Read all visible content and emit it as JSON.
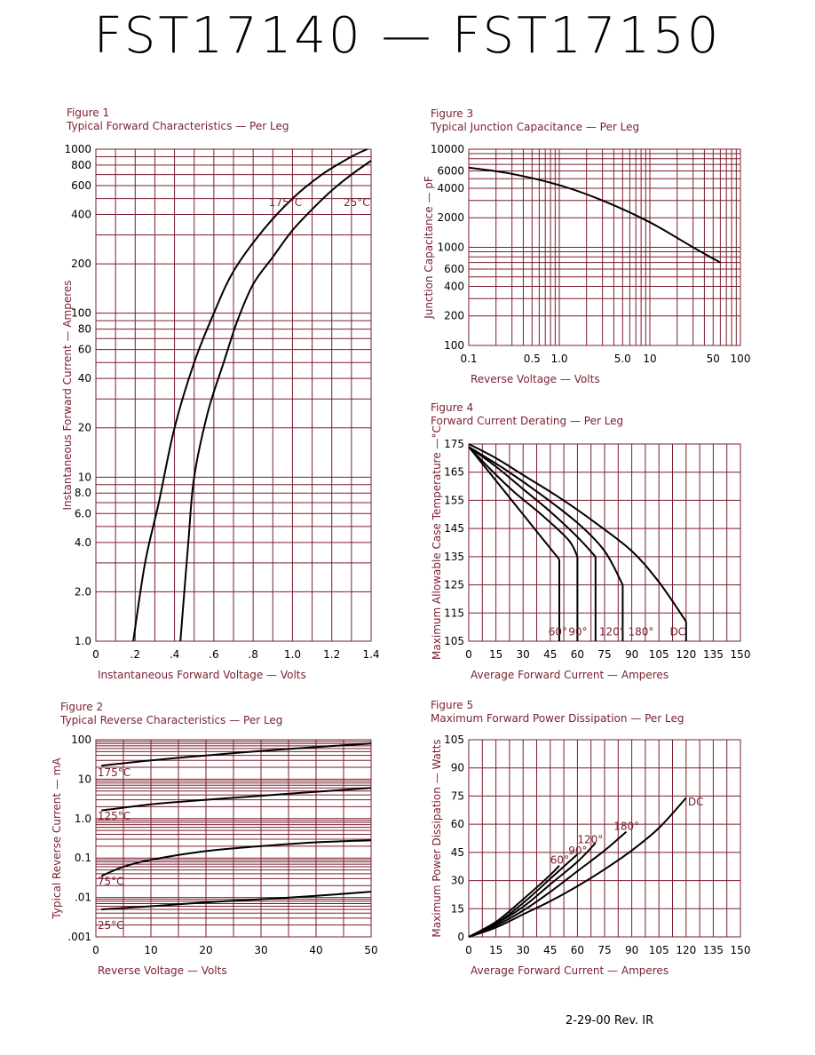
{
  "page": {
    "title": "FST17140 — FST17150",
    "footer": "2-29-00    Rev. IR"
  },
  "chart_data": [
    {
      "id": "fig1",
      "type": "line",
      "figure_label": "Figure 1",
      "title": "Typical Forward Characteristics — Per Leg",
      "xlabel": "Instantaneous Forward Voltage — Volts",
      "ylabel": "Instantaneous Forward Current — Amperes",
      "xlim": [
        0,
        1.4
      ],
      "ylim": [
        1,
        1000
      ],
      "yscale": "log",
      "x_ticks": [
        0,
        0.2,
        0.4,
        0.6,
        0.8,
        1.0,
        1.2,
        1.4
      ],
      "x_tick_labels": [
        "0",
        ".2",
        ".4",
        ".6",
        ".8",
        "1.0",
        "1.2",
        "1.4"
      ],
      "y_ticks": [
        1,
        2,
        4,
        6,
        8,
        10,
        20,
        40,
        60,
        80,
        100,
        200,
        400,
        600,
        800,
        1000
      ],
      "y_tick_labels": [
        "1.0",
        "2.0",
        "4.0",
        "6.0",
        "8.0",
        "10",
        "20",
        "40",
        "60",
        "80",
        "100",
        "200",
        "400",
        "600",
        "800",
        "1000"
      ],
      "series": [
        {
          "name": "175°C",
          "x": [
            0.19,
            0.25,
            0.32,
            0.4,
            0.5,
            0.6,
            0.7,
            0.85,
            1.0,
            1.15,
            1.3,
            1.38
          ],
          "y": [
            1,
            3,
            7,
            20,
            50,
            100,
            180,
            320,
            500,
            700,
            900,
            1000
          ]
        },
        {
          "name": "25°C",
          "x": [
            0.43,
            0.47,
            0.5,
            0.57,
            0.65,
            0.72,
            0.8,
            0.9,
            1.0,
            1.1,
            1.2,
            1.3,
            1.4
          ],
          "y": [
            1,
            4,
            10,
            25,
            50,
            90,
            150,
            220,
            320,
            430,
            560,
            700,
            850
          ]
        }
      ],
      "annotations": [
        {
          "text": "175°C",
          "x": 0.88,
          "y": 450
        },
        {
          "text": "25°C",
          "x": 1.26,
          "y": 450
        }
      ]
    },
    {
      "id": "fig2",
      "type": "line",
      "figure_label": "Figure 2",
      "title": "Typical Reverse Characteristics — Per Leg",
      "xlabel": "Reverse Voltage — Volts",
      "ylabel": "Typical Reverse Current — mA",
      "xlim": [
        0,
        50
      ],
      "ylim": [
        0.001,
        100
      ],
      "yscale": "log",
      "x_ticks": [
        0,
        10,
        20,
        30,
        40,
        50
      ],
      "x_tick_labels": [
        "0",
        "10",
        "20",
        "30",
        "40",
        "50"
      ],
      "y_ticks": [
        0.001,
        0.01,
        0.1,
        1,
        10,
        100
      ],
      "y_tick_labels": [
        ".001",
        ".01",
        "0.1",
        "1.0",
        "10",
        "100"
      ],
      "series": [
        {
          "name": "175°C",
          "x": [
            1,
            10,
            20,
            30,
            40,
            50
          ],
          "y": [
            22,
            30,
            40,
            52,
            65,
            80
          ]
        },
        {
          "name": "125°C",
          "x": [
            1,
            10,
            20,
            30,
            40,
            50
          ],
          "y": [
            1.6,
            2.3,
            3.0,
            3.8,
            4.8,
            6.0
          ]
        },
        {
          "name": "75°C",
          "x": [
            1,
            5,
            10,
            20,
            30,
            40,
            50
          ],
          "y": [
            0.035,
            0.06,
            0.09,
            0.15,
            0.2,
            0.25,
            0.28
          ]
        },
        {
          "name": "25°C",
          "x": [
            1,
            10,
            20,
            30,
            40,
            50
          ],
          "y": [
            0.005,
            0.006,
            0.0075,
            0.009,
            0.011,
            0.014
          ]
        }
      ],
      "annotations": [
        {
          "text": "175°C",
          "x": 0.3,
          "y": 12
        },
        {
          "text": "125°C",
          "x": 0.3,
          "y": 0.95
        },
        {
          "text": "75°C",
          "x": 0.3,
          "y": 0.021
        },
        {
          "text": "25°C",
          "x": 0.3,
          "y": 0.0016
        }
      ]
    },
    {
      "id": "fig3",
      "type": "line",
      "figure_label": "Figure 3",
      "title": "Typical Junction Capacitance — Per Leg",
      "xlabel": "Reverse Voltage — Volts",
      "ylabel": "Junction Capacitance — pF",
      "xscale": "log",
      "yscale": "log",
      "xlim": [
        0.1,
        100
      ],
      "ylim": [
        100,
        10000
      ],
      "x_ticks": [
        0.1,
        0.5,
        1.0,
        5.0,
        10,
        50,
        100
      ],
      "x_tick_labels": [
        "0.1",
        "0.5",
        "1.0",
        "5.0",
        "10",
        "50",
        "100"
      ],
      "y_ticks": [
        100,
        200,
        400,
        600,
        1000,
        2000,
        4000,
        6000,
        10000
      ],
      "y_tick_labels": [
        "100",
        "200",
        "400",
        "600",
        "1000",
        "2000",
        "4000",
        "6000",
        "10000"
      ],
      "series": [
        {
          "name": "",
          "x": [
            0.1,
            0.3,
            1,
            3,
            10,
            30,
            60
          ],
          "y": [
            6500,
            5600,
            4300,
            3000,
            1800,
            1000,
            700
          ]
        }
      ]
    },
    {
      "id": "fig4",
      "type": "line",
      "figure_label": "Figure 4",
      "title": "Forward Current Derating — Per Leg",
      "xlabel": "Average Forward Current — Amperes",
      "ylabel": "Maximum Allowable Case Temperature —°C",
      "xlim": [
        0,
        150
      ],
      "ylim": [
        105,
        175
      ],
      "x_ticks": [
        0,
        15,
        30,
        45,
        60,
        75,
        90,
        105,
        120,
        135,
        150
      ],
      "x_tick_labels": [
        "0",
        "15",
        "30",
        "45",
        "60",
        "75",
        "90",
        "105",
        "120",
        "135",
        "150"
      ],
      "y_ticks": [
        105,
        115,
        125,
        135,
        145,
        155,
        165,
        175
      ],
      "y_tick_labels": [
        "105",
        "115",
        "125",
        "135",
        "145",
        "155",
        "165",
        "175"
      ],
      "series": [
        {
          "name": "60°",
          "x": [
            0,
            10,
            20,
            30,
            40,
            50,
            50
          ],
          "y": [
            174,
            166,
            158,
            150,
            142,
            134,
            105
          ]
        },
        {
          "name": "90°",
          "x": [
            0,
            12,
            25,
            40,
            55,
            60,
            60
          ],
          "y": [
            174,
            166,
            158,
            150,
            141,
            135,
            105
          ]
        },
        {
          "name": "120°",
          "x": [
            0,
            15,
            30,
            45,
            60,
            70,
            70
          ],
          "y": [
            174,
            167,
            159,
            151,
            142,
            135,
            105
          ]
        },
        {
          "name": "180°",
          "x": [
            0,
            20,
            40,
            60,
            75,
            85,
            85
          ],
          "y": [
            174,
            166,
            157,
            147,
            137,
            125,
            105
          ]
        },
        {
          "name": "DC",
          "x": [
            0,
            15,
            30,
            50,
            70,
            90,
            105,
            120,
            120
          ],
          "y": [
            175,
            170,
            164,
            156,
            147,
            137,
            126,
            112,
            105
          ]
        }
      ],
      "annotations": [
        {
          "text": "60°",
          "x": 44,
          "y": 107
        },
        {
          "text": "90°",
          "x": 55,
          "y": 107
        },
        {
          "text": "120°",
          "x": 72,
          "y": 107
        },
        {
          "text": "180°",
          "x": 88,
          "y": 107
        },
        {
          "text": "DC",
          "x": 111,
          "y": 107
        }
      ]
    },
    {
      "id": "fig5",
      "type": "line",
      "figure_label": "Figure 5",
      "title": "Maximum Forward Power Dissipation — Per Leg",
      "xlabel": "Average Forward Current — Amperes",
      "ylabel": "Maximum Power Dissipation — Watts",
      "xlim": [
        0,
        150
      ],
      "ylim": [
        0,
        105
      ],
      "x_ticks": [
        0,
        15,
        30,
        45,
        60,
        75,
        90,
        105,
        120,
        135,
        150
      ],
      "x_tick_labels": [
        "0",
        "15",
        "30",
        "45",
        "60",
        "75",
        "90",
        "105",
        "120",
        "135",
        "150"
      ],
      "y_ticks": [
        0,
        15,
        30,
        45,
        60,
        75,
        90,
        105
      ],
      "y_tick_labels": [
        "0",
        "15",
        "30",
        "45",
        "60",
        "75",
        "90",
        "105"
      ],
      "series": [
        {
          "name": "60°",
          "x": [
            0,
            15,
            30,
            45,
            50
          ],
          "y": [
            0,
            8,
            20,
            33,
            38
          ]
        },
        {
          "name": "90°",
          "x": [
            0,
            15,
            30,
            45,
            60
          ],
          "y": [
            0,
            7,
            18,
            31,
            44
          ]
        },
        {
          "name": "120°",
          "x": [
            0,
            15,
            30,
            45,
            60,
            70
          ],
          "y": [
            0,
            7,
            16,
            28,
            40,
            50
          ]
        },
        {
          "name": "180°",
          "x": [
            0,
            15,
            30,
            45,
            60,
            75,
            87
          ],
          "y": [
            0,
            6,
            14,
            24,
            35,
            46,
            56
          ]
        },
        {
          "name": "DC",
          "x": [
            0,
            15,
            30,
            45,
            60,
            75,
            90,
            105,
            120
          ],
          "y": [
            0,
            5,
            12,
            19,
            27,
            36,
            46,
            58,
            74
          ]
        }
      ],
      "annotations": [
        {
          "text": "60°",
          "x": 45,
          "y": 39
        },
        {
          "text": "90°",
          "x": 55,
          "y": 44
        },
        {
          "text": "120°",
          "x": 60,
          "y": 50
        },
        {
          "text": "180°",
          "x": 80,
          "y": 57
        },
        {
          "text": "DC",
          "x": 121,
          "y": 70
        }
      ]
    }
  ]
}
